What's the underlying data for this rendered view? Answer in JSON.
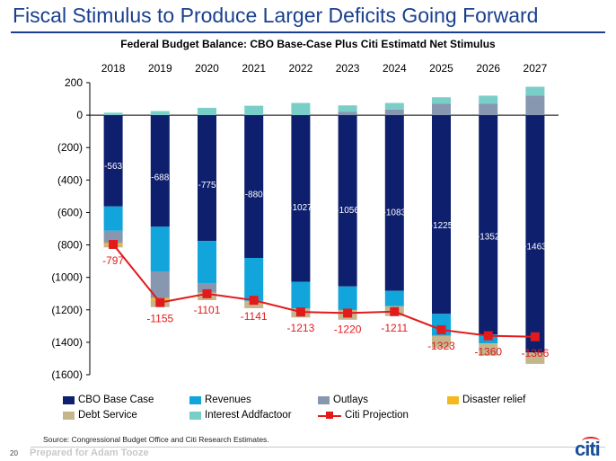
{
  "slide": {
    "title": "Fiscal Stimulus to Produce Larger Deficits Going Forward",
    "page_number": "20",
    "prepared_for": "Prepared for Adam Tooze",
    "source": "Source: Congressional Budget Office and Citi Research Estimates.",
    "logo": "citi"
  },
  "colors": {
    "cbo": "#0e1f6e",
    "revenues": "#12a5dc",
    "outlays": "#8897b0",
    "disaster": "#f4b81c",
    "debt": "#c4b58d",
    "interest": "#79cfc8",
    "projection": "#e31a1c",
    "title": "#1a3f8f"
  },
  "chart_data": {
    "type": "bar",
    "title": "Federal Budget Balance: CBO Base-Case Plus Citi Estimatd Net Stimulus",
    "categories": [
      "2018",
      "2019",
      "2020",
      "2021",
      "2022",
      "2023",
      "2024",
      "2025",
      "2026",
      "2027"
    ],
    "ylim": [
      -1600,
      200
    ],
    "yticks": [
      200,
      0,
      -200,
      -400,
      -600,
      -800,
      -1000,
      -1200,
      -1400,
      -1600
    ],
    "ytick_labels": [
      "200",
      "0",
      "(200)",
      "(400)",
      "(600)",
      "(800)",
      "(1000)",
      "(1200)",
      "(1400)",
      "(1600)"
    ],
    "stacked_negative_order": [
      "CBO Base Case",
      "Revenues",
      "Outlays",
      "Disaster relief",
      "Debt Service"
    ],
    "series": [
      {
        "name": "CBO Base Case",
        "key": "cbo",
        "values": [
          -563,
          -688,
          -775,
          -880,
          -1027,
          -1056,
          -1083,
          -1225,
          -1352,
          -1463
        ]
      },
      {
        "name": "Revenues",
        "key": "revenues",
        "values": [
          -150,
          -275,
          -260,
          -265,
          -165,
          -145,
          -95,
          -135,
          -55,
          0
        ]
      },
      {
        "name": "Outlays",
        "key": "outlays",
        "values": [
          -75,
          -165,
          -60,
          0,
          0,
          0,
          0,
          0,
          0,
          0
        ]
      },
      {
        "name": "Disaster relief",
        "key": "disaster",
        "values": [
          -12,
          -15,
          -5,
          0,
          0,
          0,
          0,
          0,
          0,
          0
        ]
      },
      {
        "name": "Debt Service",
        "key": "debt",
        "values": [
          -15,
          -40,
          -40,
          -45,
          -55,
          -60,
          -60,
          -75,
          -75,
          -70
        ]
      },
      {
        "name": "Interest Addfactoor",
        "key": "interest",
        "values": [
          15,
          25,
          45,
          58,
          75,
          40,
          40,
          40,
          50,
          55
        ]
      },
      {
        "name": "Outlays (positive)",
        "key": "outlays",
        "legend": false,
        "values": [
          0,
          0,
          0,
          0,
          0,
          20,
          35,
          70,
          70,
          120
        ]
      },
      {
        "name": "Citi Projection",
        "key": "projection",
        "kind": "line",
        "values": [
          -797,
          -1155,
          -1101,
          -1141,
          -1213,
          -1220,
          -1211,
          -1323,
          -1360,
          -1366
        ]
      }
    ],
    "bar_labels": [
      "-563",
      "-688",
      "-775",
      "-880",
      "-1027",
      "-1056",
      "-1083",
      "-1225",
      "-1352",
      "-1463"
    ],
    "line_labels": [
      "-797",
      "-1155",
      "-1101",
      "-1141",
      "-1213",
      "-1220",
      "-1211",
      "-1323",
      "-1360",
      "-1366"
    ],
    "legend_position": "bottom",
    "grid": false
  },
  "legend": [
    {
      "label": "CBO Base Case",
      "key": "cbo"
    },
    {
      "label": "Revenues",
      "key": "revenues"
    },
    {
      "label": "Outlays",
      "key": "outlays"
    },
    {
      "label": "Disaster relief",
      "key": "disaster"
    },
    {
      "label": "Debt Service",
      "key": "debt"
    },
    {
      "label": "Interest Addfactoor",
      "key": "interest"
    },
    {
      "label": "Citi Projection",
      "key": "projection"
    }
  ]
}
